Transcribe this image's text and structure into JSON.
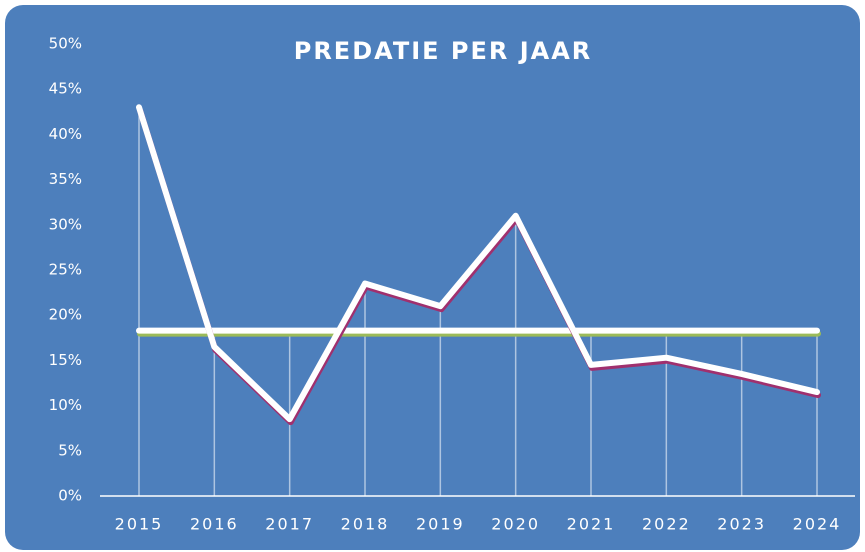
{
  "chart_data": {
    "type": "line",
    "title": "PREDATIE PER JAAR",
    "categories": [
      "2015",
      "2016",
      "2017",
      "2018",
      "2019",
      "2020",
      "2021",
      "2022",
      "2023",
      "2024"
    ],
    "series": [
      {
        "color": "#ffffff",
        "shadow": "#a0306e",
        "values": [
          43,
          16.5,
          8.5,
          23.5,
          21,
          31,
          14.5,
          15.3,
          13.5,
          11.5
        ]
      },
      {
        "color": "#ffffff",
        "shadow": "#9bbb59",
        "values": [
          18.3,
          18.3,
          18.3,
          18.3,
          18.3,
          18.3,
          18.3,
          18.3,
          18.3,
          18.3
        ]
      }
    ],
    "ylim": [
      0,
      50
    ],
    "yticks": [
      {
        "value": 0,
        "label": "0%"
      },
      {
        "value": 5,
        "label": "5%"
      },
      {
        "value": 10,
        "label": "10%"
      },
      {
        "value": 15,
        "label": "15%"
      },
      {
        "value": 20,
        "label": "20%"
      },
      {
        "value": 25,
        "label": "25%"
      },
      {
        "value": 30,
        "label": "30%"
      },
      {
        "value": 35,
        "label": "35%"
      },
      {
        "value": 40,
        "label": "40%"
      },
      {
        "value": 45,
        "label": "45%"
      },
      {
        "value": 50,
        "label": "50%"
      }
    ],
    "background": "#4d7fbc"
  }
}
